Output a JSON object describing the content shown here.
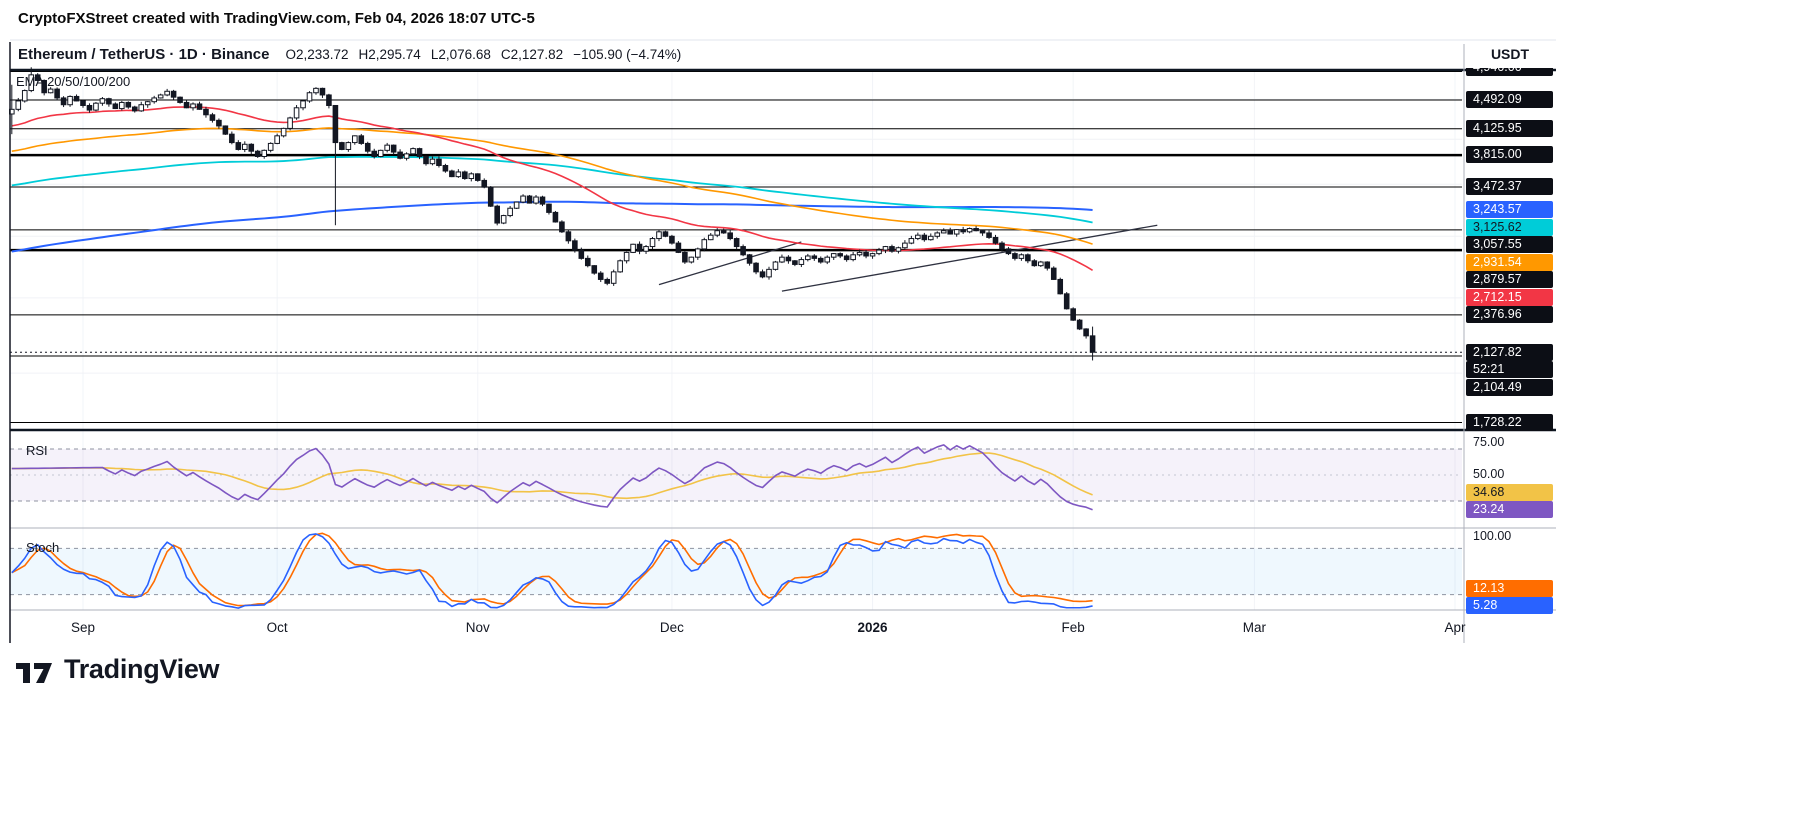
{
  "credit_bar": {
    "text": "CryptoFXStreet created with TradingView.com, Feb 04, 2026 18:07 UTC-5"
  },
  "symbol_bar": {
    "title": "Ethereum / TetherUS · 1D · Binance",
    "ohlc": {
      "open": "O2,233.72",
      "high": "H2,295.74",
      "low": "L2,076.68",
      "close": "C2,127.82",
      "change": "−105.90 (−4.74%)"
    },
    "currency": "USDT"
  },
  "main_pane": {
    "indicator_label": "EMA 20/50/100/200",
    "levels": [
      {
        "price": 4940.0,
        "label": "4,940.00",
        "weight": 2
      },
      {
        "price": 4492.09,
        "label": "4,492.09",
        "weight": 1
      },
      {
        "price": 4125.95,
        "label": "4,125.95",
        "weight": 1
      },
      {
        "price": 3815.0,
        "label": "3,815.00",
        "weight": 2.5
      },
      {
        "price": 3472.37,
        "label": "3,472.37",
        "weight": 1
      },
      {
        "price": 3057.55,
        "label": "3,057.55",
        "weight": 1
      },
      {
        "price": 2879.57,
        "label": "2,879.57",
        "weight": 2.5
      },
      {
        "price": 2376.96,
        "label": "2,376.96",
        "weight": 1
      },
      {
        "price": 2104.49,
        "label": "2,104.49",
        "weight": 1
      },
      {
        "price": 1728.22,
        "label": "1,728.22",
        "weight": 1
      }
    ],
    "emas": [
      {
        "period": 20,
        "value": 2712.15,
        "label": "2,712.15",
        "color": "#f23645",
        "text_color": "#ffffff",
        "seed": 4150,
        "width": 1.6
      },
      {
        "period": 50,
        "value": 2931.54,
        "label": "2,931.54",
        "color": "#ff9800",
        "text_color": "#ffffff",
        "seed": 3850,
        "width": 1.6
      },
      {
        "period": 100,
        "value": 3125.62,
        "label": "3,125.62",
        "color": "#00ccd8",
        "text_color": "#131722",
        "seed": 3480,
        "width": 1.8
      },
      {
        "period": 200,
        "value": 3243.57,
        "label": "3,243.57",
        "color": "#2962ff",
        "text_color": "#ffffff",
        "seed": 2860,
        "width": 2
      }
    ],
    "current_price": {
      "value": 2127.82,
      "label": "2,127.82",
      "countdown": "52:21",
      "color": "#0c0e15",
      "text_color": "#ffffff"
    },
    "trendlines": [
      {
        "points": [
          [
            100,
            2600
          ],
          [
            122,
            2950
          ]
        ]
      },
      {
        "points": [
          [
            119,
            2550
          ],
          [
            177,
            3100
          ]
        ]
      }
    ],
    "price_grid": [
      4500,
      4000,
      3500,
      3000,
      2500,
      2000
    ],
    "level_label_bg": "#0c0e15",
    "level_label_fg": "#ffffff"
  },
  "rsi_pane": {
    "label": "RSI",
    "scale_labels": [
      {
        "value": 75,
        "text": "75.00"
      },
      {
        "value": 50,
        "text": "50.00"
      }
    ],
    "bands": [
      70,
      30
    ],
    "series": [
      {
        "name": "RSI",
        "last": 23.24,
        "label": "23.24",
        "color": "#7e57c2",
        "text_color": "#ffffff"
      },
      {
        "name": "RSI-based MA",
        "last": 34.68,
        "label": "34.68",
        "color": "#f2c347",
        "text_color": "#131722"
      }
    ]
  },
  "stoch_pane": {
    "label": "Stoch",
    "scale_labels": [
      {
        "value": 100,
        "text": "100.00"
      }
    ],
    "bands": [
      80,
      20
    ],
    "series": [
      {
        "name": "%K",
        "last": 5.28,
        "label": "5.28",
        "color": "#2962ff",
        "text_color": "#ffffff"
      },
      {
        "name": "%D",
        "last": 12.13,
        "label": "12.13",
        "color": "#ff6d00",
        "text_color": "#ffffff"
      }
    ]
  },
  "time_axis": {
    "labels": [
      {
        "text": "Sep",
        "day": 11
      },
      {
        "text": "Oct",
        "day": 41
      },
      {
        "text": "Nov",
        "day": 72
      },
      {
        "text": "Dec",
        "day": 102
      },
      {
        "text": "2026",
        "day": 133,
        "bold": true
      },
      {
        "text": "Feb",
        "day": 164
      },
      {
        "text": "Mar",
        "day": 192
      },
      {
        "text": "Apr",
        "day": 223
      }
    ]
  },
  "footer": {
    "brand": "TradingView"
  },
  "chart_data": {
    "type": "candlestick",
    "symbol": "Ethereum / TetherUS",
    "exchange": "Binance",
    "timeframe": "1D",
    "start_date": "2025-08-21",
    "first_open": 4310,
    "closes": [
      4370,
      4480,
      4620,
      4840,
      4760,
      4590,
      4640,
      4520,
      4430,
      4540,
      4480,
      4420,
      4360,
      4450,
      4510,
      4440,
      4380,
      4460,
      4400,
      4350,
      4430,
      4470,
      4520,
      4560,
      4610,
      4530,
      4460,
      4390,
      4440,
      4370,
      4300,
      4230,
      4160,
      4060,
      3960,
      3880,
      3940,
      3860,
      3800,
      3870,
      3950,
      4040,
      4130,
      4260,
      4390,
      4480,
      4590,
      4650,
      4560,
      4420,
      3960,
      3880,
      3960,
      4040,
      3950,
      3860,
      3800,
      3870,
      3930,
      3850,
      3780,
      3830,
      3890,
      3800,
      3720,
      3770,
      3700,
      3640,
      3580,
      3630,
      3560,
      3610,
      3540,
      3470,
      3280,
      3120,
      3190,
      3260,
      3320,
      3380,
      3310,
      3370,
      3300,
      3220,
      3130,
      3040,
      2960,
      2880,
      2810,
      2750,
      2690,
      2640,
      2610,
      2700,
      2790,
      2860,
      2930,
      2870,
      2910,
      2980,
      3040,
      3000,
      2940,
      2860,
      2780,
      2820,
      2890,
      2970,
      3010,
      3050,
      3030,
      2980,
      2910,
      2840,
      2770,
      2700,
      2660,
      2720,
      2780,
      2820,
      2790,
      2760,
      2800,
      2830,
      2810,
      2780,
      2820,
      2850,
      2830,
      2800,
      2840,
      2860,
      2830,
      2850,
      2880,
      2910,
      2870,
      2900,
      2940,
      2980,
      3010,
      2970,
      3000,
      3030,
      3050,
      3020,
      3060,
      3040,
      3070,
      3050,
      3030,
      2990,
      2940,
      2890,
      2850,
      2810,
      2840,
      2790,
      2750,
      2780,
      2730,
      2640,
      2530,
      2420,
      2340,
      2280,
      2233.72,
      2127.82
    ],
    "overrides": {
      "0": {
        "high": 4700,
        "low": 4060
      },
      "3": {
        "high": 4950
      },
      "50": {
        "low": 3100
      },
      "167": {
        "open": 2233.72,
        "high": 2295.74,
        "low": 2076.68
      }
    },
    "last_candle": {
      "open": 2233.72,
      "high": 2295.74,
      "low": 2076.68,
      "close": 2127.82,
      "change": -105.9,
      "change_pct": -4.74
    },
    "price_scale": {
      "type": "log",
      "top": 4910,
      "bottom": 1690
    },
    "indicators": [
      "EMA 20/50/100/200",
      "RSI with MA (current 23.24 / 34.68)",
      "Stochastic (current 5.28 / 12.13)"
    ]
  }
}
